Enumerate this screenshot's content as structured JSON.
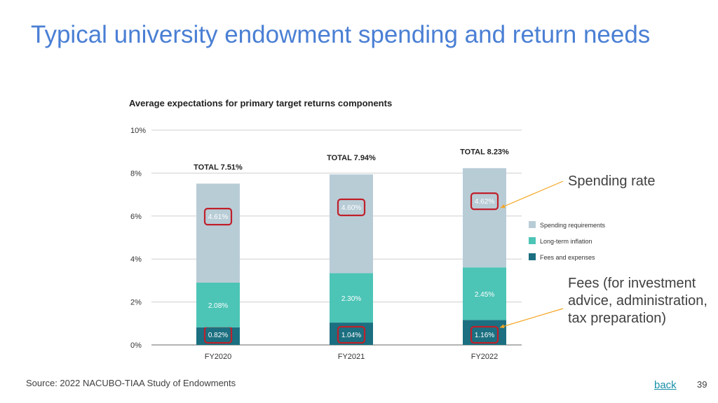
{
  "slide": {
    "title": "Typical university endowment spending and return needs",
    "source": "Source: 2022 NACUBO-TIAA Study of Endowments",
    "back_link": "back",
    "page_number": "39"
  },
  "callouts": {
    "spending": "Spending rate",
    "fees": "Fees (for investment advice, administration, tax preparation)",
    "line_color": "#f5a623"
  },
  "highlight_color": "#c0202a",
  "chart_data": {
    "type": "bar",
    "stacked": true,
    "title": "Average expectations for primary target returns components",
    "categories": [
      "FY2020",
      "FY2021",
      "FY2022"
    ],
    "series": [
      {
        "name": "Fees and expenses",
        "color": "#1b6f80",
        "values": [
          0.82,
          1.04,
          1.16
        ],
        "labels": [
          "0.82%",
          "1.04%",
          "1.16%"
        ]
      },
      {
        "name": "Long-term inflation",
        "color": "#4cc4b6",
        "values": [
          2.08,
          2.3,
          2.45
        ],
        "labels": [
          "2.08%",
          "2.30%",
          "2.45%"
        ]
      },
      {
        "name": "Spending requirements",
        "color": "#b8ccd6",
        "values": [
          4.61,
          4.6,
          4.62
        ],
        "labels": [
          "4.61%",
          "4.60%",
          "4.62%"
        ]
      }
    ],
    "legend_order": [
      "Spending requirements",
      "Long-term inflation",
      "Fees and expenses"
    ],
    "totals": [
      "TOTAL 7.51%",
      "TOTAL 7.94%",
      "TOTAL 8.23%"
    ],
    "yticks": [
      0,
      2,
      4,
      6,
      8,
      10
    ],
    "ytick_labels": [
      "0%",
      "2%",
      "4%",
      "6%",
      "8%",
      "10%"
    ],
    "ylim": [
      0,
      10
    ],
    "grid": true,
    "legend_position": "right",
    "highlighted": {
      "Spending requirements": [
        true,
        true,
        true
      ],
      "Fees and expenses": [
        true,
        true,
        true
      ]
    }
  }
}
